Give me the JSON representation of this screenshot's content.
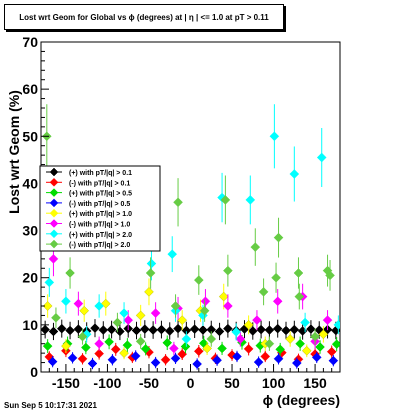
{
  "title": "Lost wrt Geom for Global vs ϕ (degrees) at | η | <= 1.0 at pT > 0.11",
  "timestamp": "Sun Sep  5 10:17:31 2021",
  "chart_data": {
    "type": "scatter",
    "title": "Lost wrt Geom for Global vs ϕ (degrees) at | η | <= 1.0 at pT > 0.11",
    "xlabel": "ϕ (degrees)",
    "ylabel": "Lost wrt Geom (%)",
    "xlim": [
      -180,
      180
    ],
    "ylim": [
      0,
      70
    ],
    "x_ticks": [
      -150,
      -100,
      -50,
      0,
      50,
      100,
      150
    ],
    "y_ticks": [
      0,
      10,
      20,
      30,
      40,
      50,
      60,
      70
    ],
    "grid": false,
    "legend_position": "left",
    "series": [
      {
        "name": "(+) with pT/|q| > 0.1",
        "color": "#000000",
        "marker": "diamond",
        "points": [
          [
            -175,
            9.0
          ],
          [
            -165,
            8.6
          ],
          [
            -155,
            9.2
          ],
          [
            -145,
            8.8
          ],
          [
            -135,
            9.1
          ],
          [
            -125,
            8.7
          ],
          [
            -115,
            9.3
          ],
          [
            -105,
            8.9
          ],
          [
            -95,
            9.0
          ],
          [
            -85,
            8.6
          ],
          [
            -75,
            9.2
          ],
          [
            -65,
            8.8
          ],
          [
            -55,
            9.1
          ],
          [
            -45,
            8.9
          ],
          [
            -35,
            9.0
          ],
          [
            -25,
            8.7
          ],
          [
            -15,
            9.2
          ],
          [
            -5,
            8.8
          ],
          [
            5,
            9.1
          ],
          [
            15,
            8.9
          ],
          [
            25,
            9.0
          ],
          [
            35,
            8.6
          ],
          [
            45,
            9.2
          ],
          [
            55,
            8.8
          ],
          [
            65,
            9.1
          ],
          [
            75,
            8.7
          ],
          [
            85,
            9.0
          ],
          [
            95,
            8.9
          ],
          [
            105,
            9.2
          ],
          [
            115,
            8.8
          ],
          [
            125,
            9.0
          ],
          [
            135,
            8.7
          ],
          [
            145,
            9.1
          ],
          [
            155,
            8.9
          ],
          [
            165,
            9.0
          ],
          [
            175,
            8.8
          ]
        ]
      },
      {
        "name": "(-) with pT/|q| > 0.1",
        "color": "#ff0000",
        "marker": "diamond",
        "points": [
          [
            -170,
            3.2
          ],
          [
            -150,
            4.5
          ],
          [
            -130,
            2.8
          ],
          [
            -110,
            3.9
          ],
          [
            -90,
            4.8
          ],
          [
            -70,
            3.1
          ],
          [
            -50,
            4.2
          ],
          [
            -30,
            2.6
          ],
          [
            -10,
            3.8
          ],
          [
            10,
            4.4
          ],
          [
            30,
            2.9
          ],
          [
            50,
            3.6
          ],
          [
            70,
            4.9
          ],
          [
            90,
            3.3
          ],
          [
            110,
            4.1
          ],
          [
            130,
            2.7
          ],
          [
            150,
            3.8
          ],
          [
            170,
            4.3
          ]
        ]
      },
      {
        "name": "(+) with pT/|q| > 0.5",
        "color": "#00dd00",
        "marker": "diamond",
        "points": [
          [
            -172,
            5.5
          ],
          [
            -148,
            6.0
          ],
          [
            -126,
            5.2
          ],
          [
            -98,
            6.4
          ],
          [
            -76,
            5.7
          ],
          [
            -54,
            4.9
          ],
          [
            -28,
            6.2
          ],
          [
            -6,
            5.4
          ],
          [
            16,
            6.1
          ],
          [
            38,
            5.0
          ],
          [
            62,
            6.3
          ],
          [
            84,
            5.6
          ],
          [
            108,
            4.8
          ],
          [
            132,
            6.0
          ],
          [
            156,
            5.3
          ],
          [
            176,
            5.9
          ]
        ]
      },
      {
        "name": "(-) with pT/|q| > 0.5",
        "color": "#0000ff",
        "marker": "diamond",
        "points": [
          [
            -166,
            2.2
          ],
          [
            -142,
            3.0
          ],
          [
            -118,
            1.8
          ],
          [
            -94,
            2.6
          ],
          [
            -66,
            3.4
          ],
          [
            -42,
            2.0
          ],
          [
            -18,
            2.9
          ],
          [
            8,
            1.7
          ],
          [
            32,
            2.5
          ],
          [
            56,
            3.3
          ],
          [
            82,
            2.1
          ],
          [
            106,
            2.8
          ],
          [
            128,
            1.9
          ],
          [
            152,
            3.1
          ],
          [
            172,
            2.4
          ]
        ]
      },
      {
        "name": "(+) with pT/|q| > 1.0",
        "color": "#ffff00",
        "marker": "diamond",
        "points": [
          [
            -172,
            14.0
          ],
          [
            -128,
            13.0
          ],
          [
            -102,
            14.5
          ],
          [
            -60,
            12.0
          ],
          [
            -50,
            17.0
          ],
          [
            -10,
            11.0
          ],
          [
            12,
            13.0
          ],
          [
            40,
            16.0
          ],
          [
            70,
            10.0
          ],
          [
            120,
            7.0
          ],
          [
            160,
            8.0
          ],
          [
            -150,
            5.5
          ],
          [
            -80,
            4.0
          ],
          [
            20,
            5.0
          ],
          [
            90,
            6.0
          ],
          [
            140,
            4.5
          ]
        ]
      },
      {
        "name": "(-) with pT/|q| > 1.0",
        "color": "#ff00ff",
        "marker": "diamond",
        "points": [
          [
            -165,
            24.0
          ],
          [
            -135,
            14.5
          ],
          [
            -75,
            11.0
          ],
          [
            -42,
            12.5
          ],
          [
            -15,
            13.5
          ],
          [
            18,
            15.0
          ],
          [
            45,
            14.0
          ],
          [
            80,
            11.0
          ],
          [
            105,
            15.0
          ],
          [
            135,
            16.0
          ],
          [
            165,
            11.0
          ],
          [
            -110,
            6.0
          ],
          [
            -20,
            5.0
          ],
          [
            60,
            7.0
          ],
          [
            150,
            6.5
          ]
        ]
      },
      {
        "name": "(+) with pT/|q| > 2.0",
        "color": "#00ffff",
        "marker": "diamond",
        "points": [
          [
            -170,
            19.0
          ],
          [
            -150,
            15.0
          ],
          [
            -110,
            14.0
          ],
          [
            -80,
            12.5
          ],
          [
            -47,
            23.0
          ],
          [
            -22,
            25.0
          ],
          [
            -18,
            13.0
          ],
          [
            15,
            12.0
          ],
          [
            38,
            37.0
          ],
          [
            72,
            36.5
          ],
          [
            101,
            50.0
          ],
          [
            125,
            42.0
          ],
          [
            158,
            45.5
          ],
          [
            138,
            10.5
          ],
          [
            -125,
            8.0
          ],
          [
            -5,
            7.0
          ],
          [
            55,
            8.5
          ],
          [
            178,
            10.0
          ]
        ]
      },
      {
        "name": "(-) with pT/|q| > 2.0",
        "color": "#66cc44",
        "marker": "diamond",
        "points": [
          [
            -173,
            50.0
          ],
          [
            -162,
            11.5
          ],
          [
            -145,
            21.0
          ],
          [
            -88,
            10.5
          ],
          [
            -48,
            21.0
          ],
          [
            -15,
            36.0
          ],
          [
            -18,
            14.0
          ],
          [
            10,
            19.5
          ],
          [
            17,
            13.0
          ],
          [
            42,
            36.5
          ],
          [
            45,
            21.5
          ],
          [
            78,
            26.5
          ],
          [
            88,
            17.0
          ],
          [
            103,
            20.0
          ],
          [
            106,
            28.5
          ],
          [
            130,
            21.0
          ],
          [
            131,
            16.0
          ],
          [
            165,
            21.5
          ],
          [
            168,
            20.5
          ],
          [
            -130,
            7.5
          ],
          [
            -60,
            6.5
          ],
          [
            25,
            7.0
          ],
          [
            95,
            6.0
          ],
          [
            150,
            7.5
          ]
        ]
      }
    ],
    "vertical_error_bars_shown": true
  }
}
